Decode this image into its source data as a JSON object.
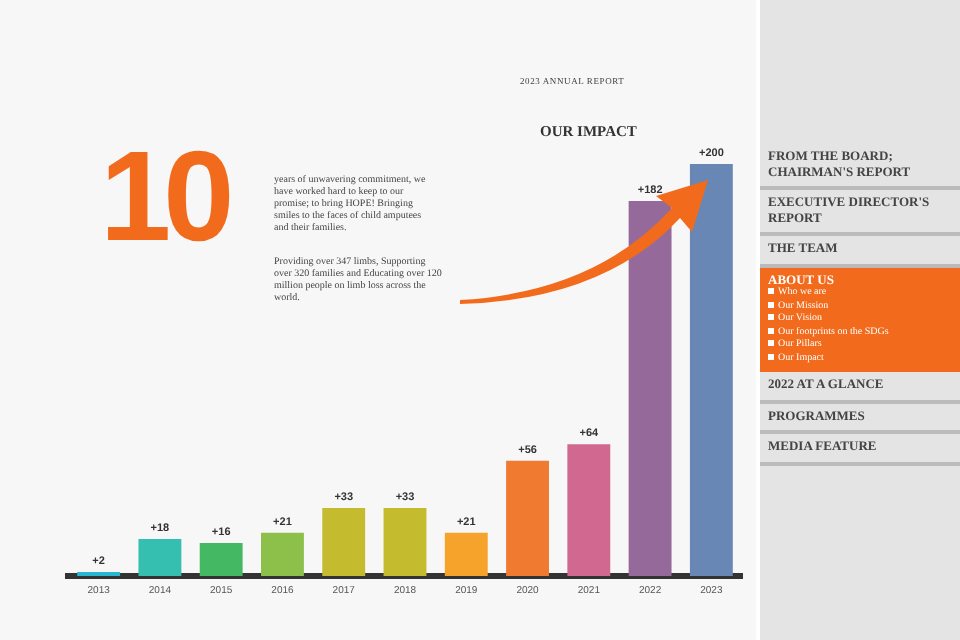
{
  "chart_data": {
    "type": "bar",
    "title": "OUR IMPACT",
    "categories": [
      "2013",
      "2014",
      "2015",
      "2016",
      "2017",
      "2018",
      "2019",
      "2020",
      "2021",
      "2022",
      "2023"
    ],
    "values": [
      2,
      18,
      16,
      21,
      33,
      33,
      21,
      56,
      64,
      182,
      200
    ],
    "value_labels": [
      "+2",
      "+18",
      "+16",
      "+21",
      "+33",
      "+33",
      "+21",
      "+56",
      "+64",
      "+182",
      "+200"
    ],
    "colors": [
      "#29b6d0",
      "#35bfb0",
      "#45b863",
      "#8cc04a",
      "#c5bb2e",
      "#c5bb2e",
      "#f5a32a",
      "#f07a30",
      "#d0688f",
      "#956a9a",
      "#6887b5"
    ],
    "tick_labels": "x",
    "annotations": [
      "2023 ANNUAL REPORT",
      "10",
      "years of unwavering commitment, we have worked hard to keep to our promise; to bring HOPE! Bringing smiles to the faces of child amputees and their families.",
      "Providing over 347 limbs, Supporting over 320 families and Educating over 120 million people on limb loss across the world.",
      "FROM THE BOARD; CHAIRMAN'S REPORT",
      "EXECUTIVE DIRECTOR'S REPORT",
      "THE TEAM",
      "ABOUT US",
      "Who we are",
      "Our Mission",
      "Our Vision",
      "Our footprints on the SDGs",
      "Our Pillars",
      "Our Impact",
      "2022 AT A GLANCE",
      "PROGRAMMES",
      "MEDIA FEATURE"
    ]
  }
}
